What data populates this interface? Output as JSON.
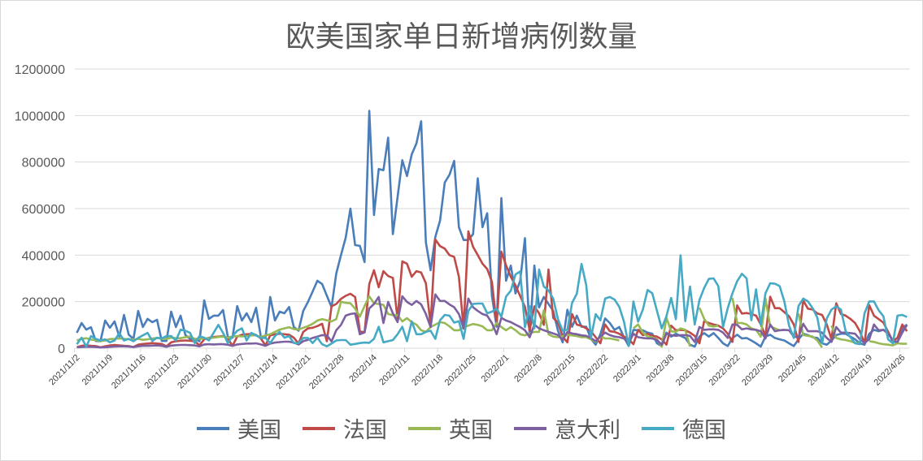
{
  "chart_data": {
    "type": "line",
    "title": "欧美国家单日新增病例数量",
    "xlabel": "",
    "ylabel": "",
    "ylim": [
      0,
      1200000
    ],
    "y_ticks": [
      "0",
      "200000",
      "400000",
      "600000",
      "800000",
      "1000000",
      "1200000"
    ],
    "grid": "horizontal",
    "legend_position": "bottom",
    "categories": [
      "2021/11/2",
      "2021/11/3",
      "2021/11/4",
      "2021/11/5",
      "2021/11/6",
      "2021/11/7",
      "2021/11/8",
      "2021/11/9",
      "2021/11/10",
      "2021/11/11",
      "2021/11/12",
      "2021/11/13",
      "2021/11/14",
      "2021/11/15",
      "2021/11/16",
      "2021/11/17",
      "2021/11/18",
      "2021/11/19",
      "2021/11/20",
      "2021/11/21",
      "2021/11/22",
      "2021/11/23",
      "2021/11/24",
      "2021/11/25",
      "2021/11/26",
      "2021/11/27",
      "2021/11/28",
      "2021/11/29",
      "2021/11/30",
      "2021/12/1",
      "2021/12/2",
      "2021/12/3",
      "2021/12/4",
      "2021/12/5",
      "2021/12/6",
      "2021/12/7",
      "2021/12/8",
      "2021/12/9",
      "2021/12/10",
      "2021/12/11",
      "2021/12/12",
      "2021/12/13",
      "2021/12/14",
      "2021/12/15",
      "2021/12/16",
      "2021/12/17",
      "2021/12/18",
      "2021/12/19",
      "2021/12/20",
      "2021/12/21",
      "2021/12/22",
      "2021/12/23",
      "2021/12/24",
      "2021/12/25",
      "2021/12/26",
      "2021/12/27",
      "2021/12/28",
      "2021/12/29",
      "2021/12/30",
      "2021/12/31",
      "2022/1/1",
      "2022/1/2",
      "2022/1/3",
      "2022/1/4",
      "2022/1/5",
      "2022/1/6",
      "2022/1/7",
      "2022/1/8",
      "2022/1/9",
      "2022/1/10",
      "2022/1/11",
      "2022/1/12",
      "2022/1/13",
      "2022/1/14",
      "2022/1/15",
      "2022/1/16",
      "2022/1/17",
      "2022/1/18",
      "2022/1/19",
      "2022/1/20",
      "2022/1/21",
      "2022/1/22",
      "2022/1/23",
      "2022/1/24",
      "2022/1/25",
      "2022/1/26",
      "2022/1/27",
      "2022/1/28",
      "2022/1/29",
      "2022/1/30",
      "2022/1/31",
      "2022/2/1",
      "2022/2/2",
      "2022/2/3",
      "2022/2/4",
      "2022/2/5",
      "2022/2/6",
      "2022/2/7",
      "2022/2/8",
      "2022/2/9",
      "2022/2/10",
      "2022/2/11",
      "2022/2/12",
      "2022/2/13",
      "2022/2/14",
      "2022/2/15",
      "2022/2/16",
      "2022/2/17",
      "2022/2/18",
      "2022/2/19",
      "2022/2/20",
      "2022/2/21",
      "2022/2/22",
      "2022/2/23",
      "2022/2/24",
      "2022/2/25",
      "2022/2/26",
      "2022/2/27",
      "2022/2/28",
      "2022/3/1",
      "2022/3/2",
      "2022/3/3",
      "2022/3/4",
      "2022/3/5",
      "2022/3/6",
      "2022/3/7",
      "2022/3/8",
      "2022/3/9",
      "2022/3/10",
      "2022/3/11",
      "2022/3/12",
      "2022/3/13",
      "2022/3/14",
      "2022/3/15",
      "2022/3/16",
      "2022/3/17",
      "2022/3/18",
      "2022/3/19",
      "2022/3/20",
      "2022/3/21",
      "2022/3/22",
      "2022/3/23",
      "2022/3/24",
      "2022/3/25",
      "2022/3/26",
      "2022/3/27",
      "2022/3/28",
      "2022/3/29",
      "2022/3/30",
      "2022/3/31",
      "2022/4/1",
      "2022/4/2",
      "2022/4/3",
      "2022/4/4",
      "2022/4/5",
      "2022/4/6",
      "2022/4/7",
      "2022/4/8",
      "2022/4/9",
      "2022/4/10",
      "2022/4/11",
      "2022/4/12",
      "2022/4/13",
      "2022/4/14",
      "2022/4/15",
      "2022/4/16",
      "2022/4/17",
      "2022/4/18",
      "2022/4/19",
      "2022/4/20",
      "2022/4/21",
      "2022/4/22",
      "2022/4/23",
      "2022/4/24",
      "2022/4/25",
      "2022/4/26",
      "2022/4/27"
    ],
    "x_tick_every": 7,
    "series": [
      {
        "name": "美国",
        "color": "#4a7ebb",
        "values": [
          66000,
          108000,
          80000,
          90000,
          31000,
          30000,
          119000,
          88000,
          115000,
          50000,
          143000,
          58000,
          40000,
          160000,
          91000,
          126000,
          112000,
          122000,
          31000,
          31000,
          157000,
          91000,
          140000,
          57000,
          40000,
          40000,
          30000,
          205000,
          126000,
          140000,
          140000,
          164000,
          50000,
          45000,
          181000,
          119000,
          150000,
          112000,
          174000,
          50000,
          45000,
          220000,
          119000,
          157000,
          150000,
          177000,
          91000,
          75000,
          160000,
          199000,
          244000,
          290000,
          276000,
          226000,
          176000,
          321000,
          400000,
          475000,
          600000,
          443000,
          440000,
          370000,
          1020000,
          572000,
          770000,
          765000,
          905000,
          490000,
          650000,
          808000,
          740000,
          833000,
          880000,
          975000,
          455000,
          335000,
          478000,
          548000,
          712000,
          745000,
          805000,
          520000,
          465000,
          465000,
          490000,
          730000,
          520000,
          580000,
          225000,
          92000,
          645000,
          290000,
          355000,
          235000,
          290000,
          473000,
          55000,
          355000,
          175000,
          220000,
          190000,
          160000,
          75000,
          25000,
          165000,
          92000,
          140000,
          92000,
          92000,
          40000,
          15000,
          60000,
          128000,
          108000,
          79000,
          91000,
          47000,
          9000,
          79000,
          77000,
          77000,
          67000,
          62000,
          21000,
          9000,
          67000,
          50000,
          62000,
          53000,
          44000,
          15000,
          7000,
          50000,
          65000,
          50000,
          65000,
          44000,
          21000,
          9000,
          44000,
          58000,
          42000,
          44000,
          33000,
          21000,
          7000,
          50000,
          58000,
          44000,
          38000,
          33000,
          21000,
          9000,
          38000,
          62000,
          56000,
          47000,
          44000,
          21000,
          15000,
          33000,
          56000,
          62000,
          62000,
          50000,
          38000,
          21000,
          15000,
          62000,
          79000,
          73000,
          79000,
          70000,
          27000,
          27000,
          85000,
          102000
        ]
      },
      {
        "name": "法国",
        "color": "#be4b48",
        "values": [
          5000,
          10000,
          12000,
          10000,
          9000,
          4000,
          8000,
          12000,
          14000,
          12000,
          10000,
          9000,
          5000,
          15000,
          18000,
          20000,
          22000,
          20000,
          18000,
          8000,
          25000,
          30000,
          32000,
          33000,
          32000,
          30000,
          12000,
          38000,
          45000,
          48000,
          50000,
          52000,
          42000,
          10000,
          50000,
          58000,
          60000,
          61000,
          57000,
          42000,
          12000,
          55000,
          60000,
          62000,
          60000,
          58000,
          45000,
          20000,
          70000,
          85000,
          88000,
          95000,
          105000,
          30000,
          180000,
          190000,
          212000,
          225000,
          234000,
          220000,
          73000,
          68000,
          276000,
          335000,
          262000,
          331000,
          310000,
          302000,
          125000,
          373000,
          363000,
          307000,
          331000,
          325000,
          279000,
          101000,
          467000,
          439000,
          428000,
          400000,
          392000,
          307000,
          84000,
          502000,
          436000,
          400000,
          363000,
          340000,
          286000,
          101000,
          415000,
          356000,
          307000,
          270000,
          224000,
          178000,
          77000,
          180000,
          150000,
          100000,
          338000,
          130000,
          110000,
          50000,
          25000,
          147000,
          101000,
          96000,
          85000,
          73000,
          47000,
          21000,
          102000,
          73000,
          70000,
          62000,
          50000,
          38000,
          17000,
          79000,
          56000,
          62000,
          53000,
          50000,
          38000,
          15000,
          97000,
          77000,
          79000,
          77000,
          67000,
          53000,
          21000,
          116000,
          108000,
          102000,
          97000,
          85000,
          62000,
          27000,
          184000,
          149000,
          151000,
          147000,
          140000,
          102000,
          53000,
          221000,
          172000,
          172000,
          155000,
          137000,
          102000,
          27000,
          205000,
          170000,
          166000,
          149000,
          143000,
          102000,
          38000,
          193000,
          147000,
          140000,
          126000,
          108000,
          73000,
          21000,
          185000,
          140000,
          125000,
          110000,
          70000,
          30000,
          45000,
          102000,
          73000
        ]
      },
      {
        "name": "英国",
        "color": "#98b954",
        "values": [
          33000,
          40000,
          43000,
          37000,
          35000,
          30000,
          33000,
          39000,
          40000,
          42000,
          40000,
          38000,
          37000,
          40000,
          36000,
          38000,
          42000,
          44000,
          40000,
          40000,
          45000,
          43000,
          43000,
          47000,
          50000,
          40000,
          40000,
          42000,
          43000,
          45000,
          48000,
          50000,
          45000,
          50000,
          52000,
          51000,
          52000,
          55000,
          55000,
          48000,
          55000,
          60000,
          70000,
          80000,
          85000,
          90000,
          82000,
          80000,
          88000,
          95000,
          105000,
          119000,
          125000,
          120000,
          115000,
          125000,
          200000,
          195000,
          193000,
          170000,
          136000,
          181000,
          223000,
          193000,
          190000,
          186000,
          147000,
          142000,
          142000,
          115000,
          129000,
          112000,
          101000,
          77000,
          70000,
          91000,
          101000,
          112000,
          108000,
          94000,
          77000,
          77000,
          91000,
          97000,
          104000,
          100000,
          94000,
          77000,
          77000,
          108000,
          91000,
          77000,
          91000,
          77000,
          60000,
          55000,
          64000,
          70000,
          70000,
          163000,
          60000,
          50000,
          47000,
          52000,
          57000,
          55000,
          52000,
          47000,
          47000,
          38000,
          27000,
          50000,
          42000,
          42000,
          38000,
          33000,
          null,
          null,
          85000,
          102000,
          67000,
          50000,
          47000,
          38000,
          7000,
          131000,
          73000,
          70000,
          85000,
          79000,
          7000,
          null,
          174000,
          126000,
          97000,
          93000,
          97000,
          null,
          null,
          216000,
          108000,
          108000,
          102000,
          85000,
          79000,
          50000,
          213000,
          93000,
          85000,
          77000,
          79000,
          null,
          null,
          149000,
          56000,
          53000,
          50000,
          33000,
          3000,
          null,
          97000,
          44000,
          38000,
          35000,
          30000,
          23000,
          21000,
          null,
          30000,
          27000,
          21000,
          17000,
          15000,
          12000,
          21000,
          19000,
          19000
        ]
      },
      {
        "name": "意大利",
        "color": "#7d60a0",
        "values": [
          4000,
          5000,
          6000,
          6000,
          5000,
          3000,
          4000,
          6000,
          7000,
          8000,
          8000,
          7000,
          5000,
          8000,
          10000,
          10000,
          11000,
          12000,
          10000,
          6000,
          11000,
          13000,
          14000,
          14000,
          13000,
          12000,
          8000,
          16000,
          17000,
          16000,
          17000,
          17000,
          15000,
          10000,
          16000,
          18000,
          20000,
          20000,
          21000,
          16000,
          10000,
          20000,
          24000,
          26000,
          28000,
          28000,
          24000,
          16000,
          30000,
          36000,
          44000,
          50000,
          56000,
          55000,
          29000,
          77000,
          100000,
          140000,
          147000,
          150000,
          60000,
          68000,
          171000,
          190000,
          220000,
          108000,
          199000,
          150000,
          112000,
          223000,
          199000,
          186000,
          203000,
          188000,
          147000,
          91000,
          231000,
          203000,
          203000,
          188000,
          176000,
          147000,
          85000,
          213000,
          176000,
          160000,
          147000,
          140000,
          108000,
          60000,
          130000,
          119000,
          112000,
          101000,
          91000,
          77000,
          47000,
          101000,
          85000,
          77000,
          70000,
          63000,
          57000,
          35000,
          70000,
          63000,
          60000,
          55000,
          53000,
          44000,
          30000,
          50000,
          67000,
          56000,
          50000,
          47000,
          42000,
          21000,
          62000,
          47000,
          44000,
          42000,
          42000,
          35000,
          15000,
          62000,
          56000,
          53000,
          56000,
          56000,
          53000,
          27000,
          91000,
          79000,
          81000,
          81000,
          79000,
          67000,
          44000,
          102000,
          100000,
          81000,
          85000,
          81000,
          79000,
          73000,
          42000,
          102000,
          73000,
          77000,
          79000,
          77000,
          50000,
          47000,
          105000,
          73000,
          73000,
          73000,
          67000,
          44000,
          27000,
          91000,
          67000,
          67000,
          65000,
          62000,
          38000,
          23000,
          38000,
          102000,
          77000,
          79000,
          62000,
          33000,
          27000,
          67000,
          100000
        ]
      },
      {
        "name": "德国",
        "color": "#46aac5",
        "values": [
          17000,
          45000,
          7000,
          52000,
          40000,
          33000,
          38000,
          25000,
          33000,
          65000,
          33000,
          40000,
          30000,
          44000,
          55000,
          66000,
          31000,
          45000,
          42000,
          52000,
          52000,
          33000,
          80000,
          75000,
          66000,
          22000,
          52000,
          45000,
          33000,
          66000,
          100000,
          66000,
          22000,
          52000,
          75000,
          85000,
          33000,
          66000,
          55000,
          44000,
          44000,
          22000,
          52000,
          70000,
          45000,
          52000,
          22000,
          22000,
          44000,
          44000,
          22000,
          45000,
          17000,
          8000,
          20000,
          33000,
          35000,
          35000,
          15000,
          18000,
          22000,
          24000,
          23000,
          40000,
          92000,
          25000,
          30000,
          35000,
          60000,
          92000,
          30000,
          115000,
          60000,
          60000,
          70000,
          75000,
          40000,
          120000,
          143000,
          140000,
          110000,
          116000,
          40000,
          160000,
          190000,
          192000,
          192000,
          150000,
          157000,
          170000,
          135000,
          222000,
          247000,
          317000,
          330000,
          90000,
          180000,
          85000,
          338000,
          265000,
          248000,
          213000,
          125000,
          75000,
          80000,
          195000,
          234000,
          362000,
          271000,
          44000,
          146000,
          120000,
          213000,
          220000,
          209000,
          178000,
          114000,
          9000,
          201000,
          114000,
          166000,
          250000,
          236000,
          160000,
          85000,
          137000,
          216000,
          125000,
          399000,
          116000,
          265000,
          102000,
          207000,
          259000,
          298000,
          300000,
          267000,
          91000,
          172000,
          236000,
          288000,
          320000,
          300000,
          120000,
          253000,
          102000,
          236000,
          279000,
          277000,
          267000,
          201000,
          97000,
          44000,
          181000,
          213000,
          201000,
          172000,
          131000,
          21000,
          128000,
          166000,
          180000,
          166000,
          73000,
          47000,
          21000,
          17000,
          150000,
          201000,
          201000,
          163000,
          137000,
          38000,
          21000,
          140000,
          143000,
          134000
        ]
      }
    ]
  }
}
